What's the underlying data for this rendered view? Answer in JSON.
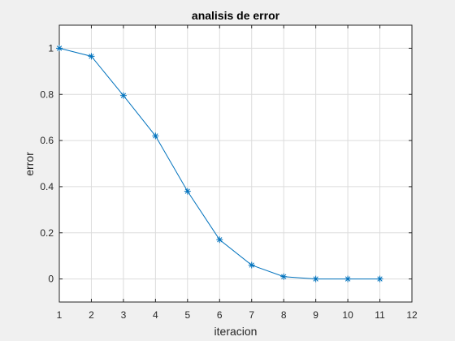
{
  "chart_data": {
    "type": "line",
    "title": "analisis de error",
    "xlabel": "iteracion",
    "ylabel": "error",
    "xlim": [
      1,
      12
    ],
    "ylim": [
      -0.1,
      1.1
    ],
    "xticks": [
      1,
      2,
      3,
      4,
      5,
      6,
      7,
      8,
      9,
      10,
      11,
      12
    ],
    "yticks": [
      0,
      0.2,
      0.4,
      0.6,
      0.8,
      1
    ],
    "ytick_labels": [
      "0",
      "0.2",
      "0.4",
      "0.6",
      "0.8",
      "1"
    ],
    "grid": true,
    "marker": "asterisk",
    "color": "#0072bd",
    "series": [
      {
        "x": [
          1,
          2,
          3,
          4,
          5,
          6,
          7,
          8,
          9,
          10,
          11
        ],
        "values": [
          1.0,
          0.965,
          0.795,
          0.62,
          0.38,
          0.17,
          0.06,
          0.01,
          0.0,
          0.0,
          0.0
        ]
      }
    ]
  }
}
